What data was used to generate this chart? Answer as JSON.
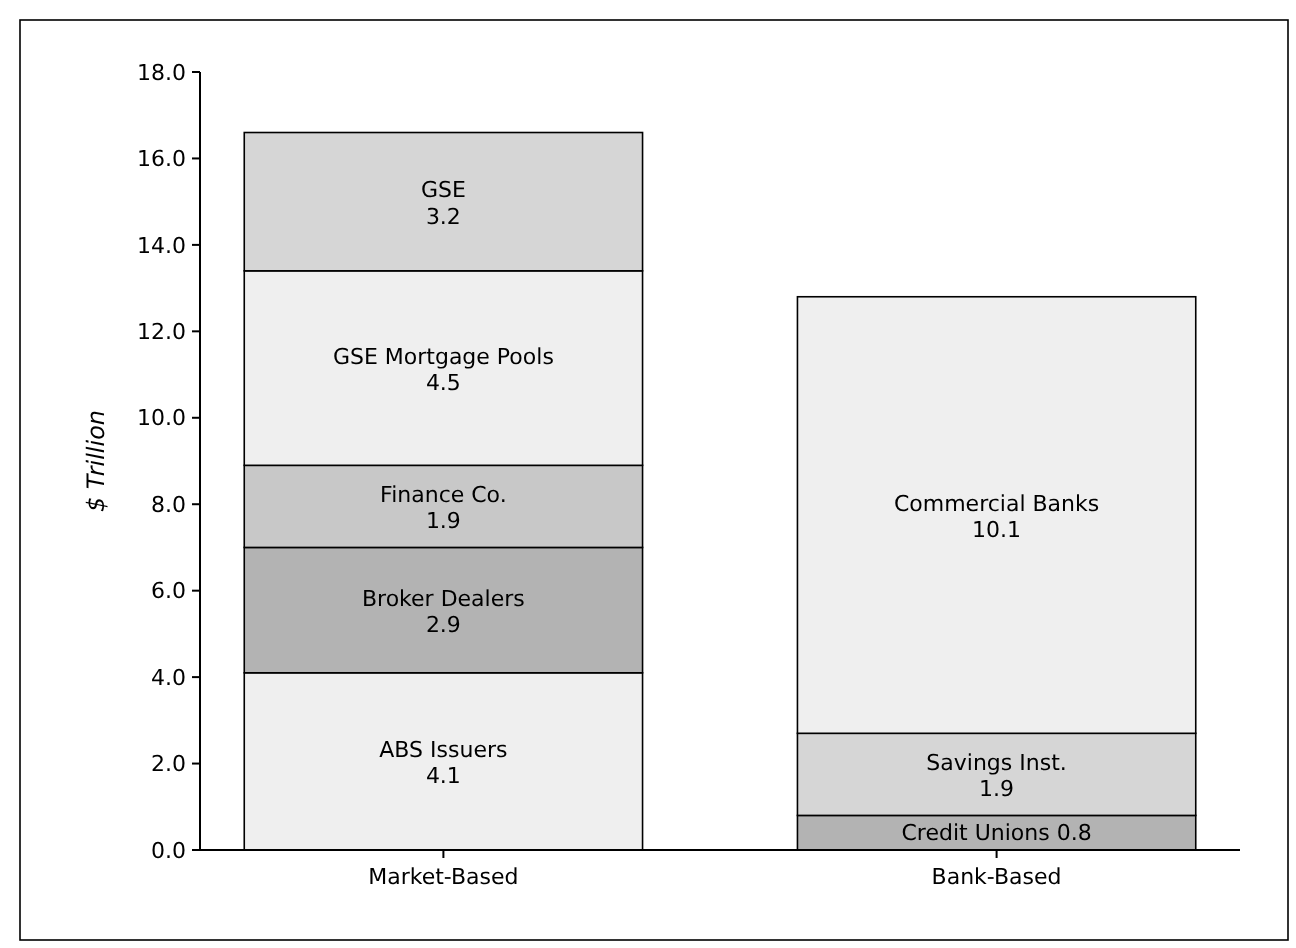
{
  "chart_data": {
    "type": "bar",
    "stacked": true,
    "ylabel": "$ Trillion",
    "categories": [
      "Market-Based",
      "Bank-Based"
    ],
    "ylim": [
      0,
      18
    ],
    "yticks": [
      {
        "value": 0,
        "label": "0.0"
      },
      {
        "value": 2,
        "label": "2.0"
      },
      {
        "value": 4,
        "label": "4.0"
      },
      {
        "value": 6,
        "label": "6.0"
      },
      {
        "value": 8,
        "label": "8.0"
      },
      {
        "value": 10,
        "label": "10.0"
      },
      {
        "value": 12,
        "label": "12.0"
      },
      {
        "value": 14,
        "label": "14.0"
      },
      {
        "value": 16,
        "label": "16.0"
      },
      {
        "value": 18,
        "label": "18.0"
      }
    ],
    "data_labels": true,
    "grid": false,
    "series": [
      {
        "name": "ABS Issuers",
        "color": "#efefef",
        "values": [
          4.1,
          null
        ]
      },
      {
        "name": "Broker Dealers",
        "color": "#b3b3b3",
        "values": [
          2.9,
          null
        ]
      },
      {
        "name": "Finance Co.",
        "color": "#c8c8c8",
        "values": [
          1.9,
          null
        ]
      },
      {
        "name": "GSE Mortgage Pools",
        "color": "#efefef",
        "values": [
          4.5,
          null
        ]
      },
      {
        "name": "GSE",
        "color": "#d6d6d6",
        "values": [
          3.2,
          null
        ]
      },
      {
        "name": "Credit Unions",
        "color": "#b3b3b3",
        "values": [
          null,
          0.8
        ]
      },
      {
        "name": "Savings Inst.",
        "color": "#d6d6d6",
        "values": [
          null,
          1.9
        ]
      },
      {
        "name": "Commercial Banks",
        "color": "#efefef",
        "values": [
          null,
          10.1
        ]
      }
    ]
  }
}
